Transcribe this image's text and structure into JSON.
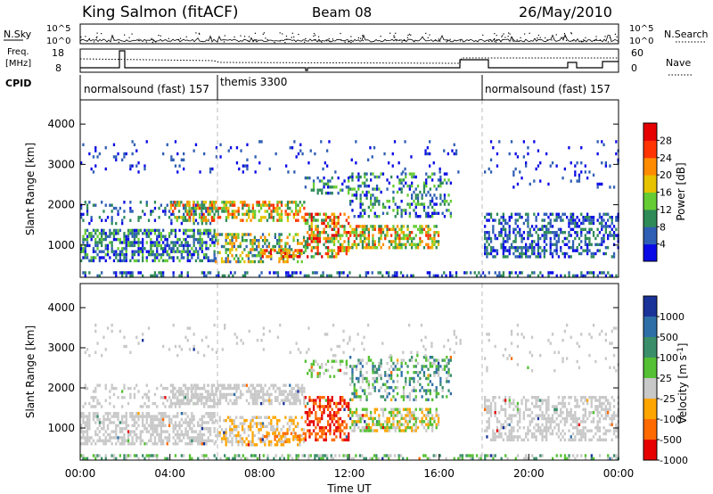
{
  "header": {
    "site": "King Salmon (fitACF)",
    "beam": "Beam 08",
    "date": "26/May/2010"
  },
  "top_panels": {
    "nsky_label": "N.Sky",
    "nsearch_label": "N.Search",
    "nsky_ticks": [
      "10^5",
      "10^0"
    ],
    "nsearch_ticks": [
      "10^5",
      "10^0"
    ],
    "freq_label_1": "Freq.",
    "freq_label_2": "[MHz]",
    "freq_ticks": [
      "18",
      "8"
    ],
    "nave_label": "Nave",
    "nave_ticks": [
      "60",
      "0"
    ],
    "cpid_label": "CPID",
    "cpid_segments": [
      {
        "label": "normalsound (fast) 157",
        "start_hour": 0,
        "end_hour": 6
      },
      {
        "label": "themis 3300",
        "start_hour": 6,
        "end_hour": 18
      },
      {
        "label": "normalsound (fast) 157",
        "start_hour": 18,
        "end_hour": 24
      }
    ]
  },
  "chart_data": [
    {
      "type": "heatmap",
      "name": "power",
      "ylabel": "Slant Range [km]",
      "yticks": [
        "1000",
        "2000",
        "3000",
        "4000"
      ],
      "ylim": [
        200,
        4600
      ],
      "xlim": [
        0,
        24
      ],
      "colorbar_label": "Power [dB]",
      "colorbar_ticks": [
        "4",
        "8",
        "12",
        "16",
        "20",
        "24",
        "28"
      ],
      "colors": [
        "#0a0ae6",
        "#2f5fb4",
        "#2e8b57",
        "#66cc33",
        "#e6c200",
        "#ff8c00",
        "#ff3300",
        "#e60000"
      ]
    },
    {
      "type": "heatmap",
      "name": "velocity",
      "ylabel": "Slant Range [km]",
      "yticks": [
        "1000",
        "2000",
        "3000",
        "4000"
      ],
      "ylim": [
        200,
        4600
      ],
      "xlim": [
        0,
        24
      ],
      "colorbar_label": "Velocity [m s",
      "colorbar_label_sup": "-1",
      "colorbar_label_end": "]",
      "colorbar_ticks": [
        "1000",
        "500",
        "100",
        "25",
        "-25",
        "-100",
        "-500",
        "-1000"
      ],
      "colors": [
        "#1a3399",
        "#2e6fa8",
        "#3a8f6a",
        "#55c033",
        "#c8c8c8",
        "#ffa500",
        "#ff6a00",
        "#e60000"
      ]
    }
  ],
  "xaxis": {
    "ticks": [
      "00:00",
      "04:00",
      "08:00",
      "12:00",
      "16:00",
      "20:00",
      "00:00"
    ],
    "label": "Time UT"
  }
}
